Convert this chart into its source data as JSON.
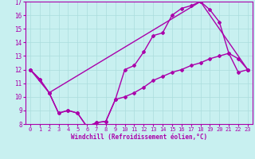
{
  "title": "",
  "xlabel": "Windchill (Refroidissement éolien,°C)",
  "bg_color": "#c8f0f0",
  "line_color": "#aa00aa",
  "grid_color": "#aadddd",
  "xlim": [
    -0.5,
    23.5
  ],
  "ylim": [
    8,
    17
  ],
  "xticks": [
    0,
    1,
    2,
    3,
    4,
    5,
    6,
    7,
    8,
    9,
    10,
    11,
    12,
    13,
    14,
    15,
    16,
    17,
    18,
    19,
    20,
    21,
    22,
    23
  ],
  "yticks": [
    8,
    9,
    10,
    11,
    12,
    13,
    14,
    15,
    16,
    17
  ],
  "line1_x": [
    0,
    1,
    2,
    3,
    4,
    5,
    6,
    7,
    8,
    9,
    10,
    11,
    12,
    13,
    14,
    15,
    16,
    17,
    18,
    19,
    20,
    21,
    22,
    23
  ],
  "line1_y": [
    12,
    11.3,
    10.3,
    8.8,
    9.0,
    8.8,
    7.8,
    8.1,
    8.2,
    9.8,
    12.0,
    12.3,
    13.3,
    14.5,
    14.7,
    16.0,
    16.5,
    16.7,
    17.0,
    16.4,
    15.5,
    13.2,
    12.8,
    12.0
  ],
  "line2_x": [
    0,
    1,
    2,
    3,
    4,
    5,
    6,
    7,
    8,
    9,
    10,
    11,
    12,
    13,
    14,
    15,
    16,
    17,
    18,
    19,
    20,
    21,
    22,
    23
  ],
  "line2_y": [
    12,
    11.3,
    10.3,
    8.8,
    9.0,
    8.8,
    7.8,
    8.1,
    8.2,
    9.8,
    10.0,
    10.3,
    10.7,
    11.2,
    11.5,
    11.8,
    12.0,
    12.3,
    12.5,
    12.8,
    13.0,
    13.2,
    11.8,
    12.0
  ],
  "line3_x": [
    0,
    2,
    18,
    23
  ],
  "line3_y": [
    12,
    10.3,
    17.0,
    12.0
  ],
  "marker": "D",
  "markersize": 2,
  "linewidth": 1.0,
  "tick_fontsize": 5,
  "xlabel_fontsize": 5.5
}
